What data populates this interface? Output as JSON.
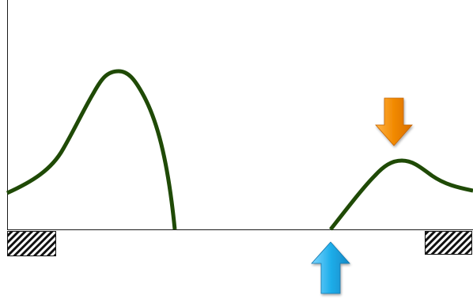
{
  "diagram": {
    "curve_color": "#1f4a06",
    "axis_color": "#1a1a1a",
    "arrow_down_color": "#f28a00",
    "arrow_up_color": "#1faeea",
    "left_block_pattern": "diagonal-hatch",
    "right_block_pattern": "diagonal-hatch"
  }
}
